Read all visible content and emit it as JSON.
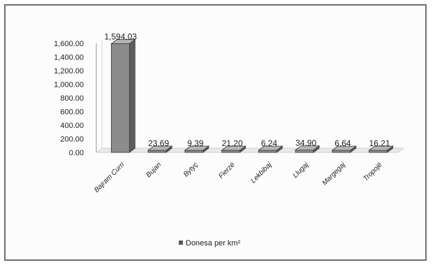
{
  "chart_data": {
    "type": "bar",
    "categories": [
      "Bajram Curri",
      "Bujan",
      "Bytyç",
      "Fierzë",
      "Lekbibaj",
      "Llugaj",
      "Margegaj",
      "Tropojë"
    ],
    "series": [
      {
        "name": "Donesa per km²",
        "values": [
          1594.03,
          23.69,
          9.39,
          21.2,
          6.24,
          34.9,
          6.64,
          16.21
        ]
      }
    ],
    "data_labels": [
      "1,594.03",
      "23.69",
      "9.39",
      "21.20",
      "6.24",
      "34.90",
      "6.64",
      "16.21"
    ],
    "y_ticks": [
      "0.00",
      "200.00",
      "400.00",
      "600.00",
      "800.00",
      "1,000.00",
      "1,200.00",
      "1,400.00",
      "1,600.00"
    ],
    "ylim": [
      0,
      1600
    ],
    "bar_color": "#8c8c8c",
    "legend_position": "bottom",
    "grid": false
  }
}
